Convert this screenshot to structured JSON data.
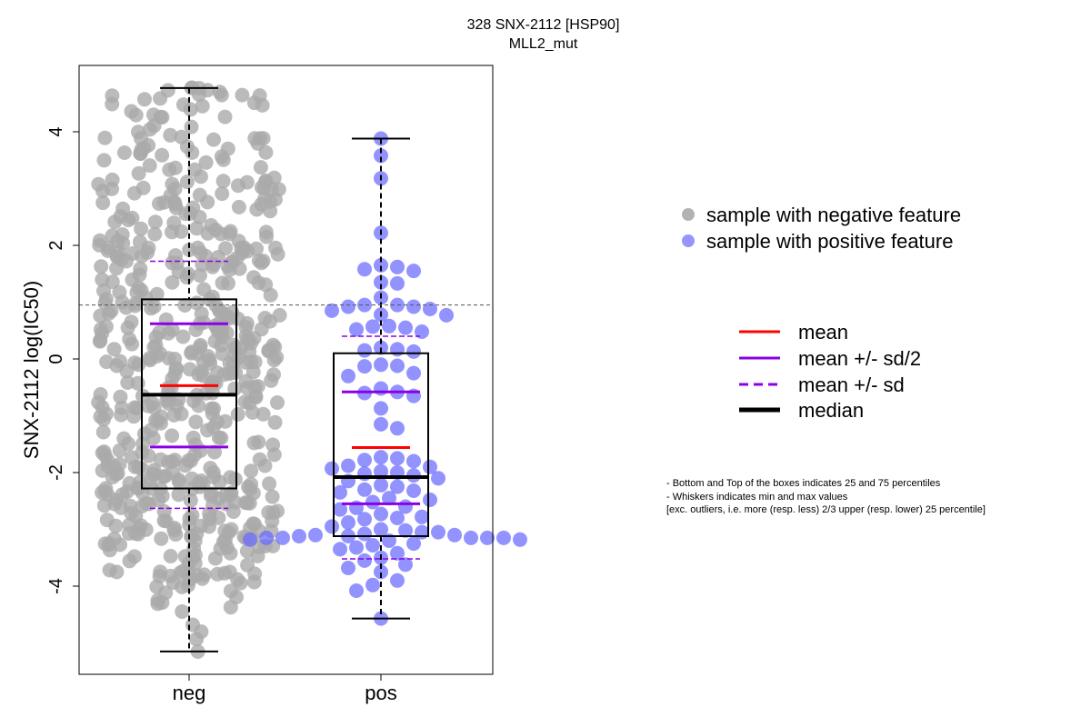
{
  "chart_data": {
    "type": "box",
    "title": "328 SNX-2112 [HSP90]",
    "subtitle": "MLL2_mut",
    "ylabel": "SNX-2112 log(IC50)",
    "xlabel": "",
    "ylim": [
      -5.5,
      5.2
    ],
    "yticks": [
      -4,
      -2,
      0,
      2,
      4
    ],
    "categories": [
      "neg",
      "pos"
    ],
    "reference_line_y": 0.95,
    "groups": [
      {
        "name": "neg",
        "color": "#aaaaaa",
        "whisker_low": -5.15,
        "q1": -2.28,
        "median": -0.63,
        "q3": 1.05,
        "whisker_high": 4.77,
        "mean": -0.47,
        "mean_minus_half_sd": -1.55,
        "mean_plus_half_sd": 0.62,
        "mean_minus_sd": -2.63,
        "mean_plus_sd": 1.72
      },
      {
        "name": "pos",
        "color": "#7777ff",
        "whisker_low": -4.57,
        "q1": -3.12,
        "median": -2.08,
        "q3": 0.1,
        "whisker_high": 3.88,
        "mean": -1.56,
        "mean_minus_half_sd": -2.55,
        "mean_plus_half_sd": -0.58,
        "mean_minus_sd": -3.52,
        "mean_plus_sd": 0.4,
        "points": [
          3.88,
          3.58,
          3.18,
          2.22,
          1.65,
          1.62,
          1.58,
          1.55,
          1.35,
          1.33,
          1.08,
          0.95,
          0.95,
          0.92,
          0.92,
          0.88,
          0.85,
          0.78,
          0.77,
          0.58,
          0.57,
          0.55,
          0.52,
          0.48,
          0.2,
          0.17,
          0.15,
          0.13,
          -0.1,
          -0.12,
          -0.13,
          -0.25,
          -0.3,
          -0.52,
          -0.58,
          -0.6,
          -0.65,
          -0.87,
          -1.15,
          -1.22,
          -1.73,
          -1.75,
          -1.78,
          -1.8,
          -1.88,
          -1.9,
          -1.93,
          -1.98,
          -2.0,
          -2.02,
          -2.05,
          -2.1,
          -2.15,
          -2.22,
          -2.25,
          -2.3,
          -2.32,
          -2.35,
          -2.45,
          -2.48,
          -2.52,
          -2.6,
          -2.62,
          -2.65,
          -2.73,
          -2.78,
          -2.8,
          -2.82,
          -2.88,
          -2.95,
          -3.0,
          -3.02,
          -3.05,
          -3.05,
          -3.08,
          -3.1,
          -3.1,
          -3.12,
          -3.12,
          -3.15,
          -3.15,
          -3.15,
          -3.15,
          -3.15,
          -3.18,
          -3.18,
          -3.2,
          -3.25,
          -3.28,
          -3.32,
          -3.35,
          -3.42,
          -3.5,
          -3.55,
          -3.62,
          -3.68,
          -3.75,
          -3.9,
          -3.98,
          -4.08,
          -4.57
        ]
      }
    ],
    "legend_points": [
      {
        "label": "sample with negative feature",
        "color": "#aaaaaa"
      },
      {
        "label": "sample with positive feature",
        "color": "#8a8aff"
      }
    ],
    "legend_lines": [
      {
        "label": "mean",
        "color": "#ff0000",
        "style": "solid"
      },
      {
        "label": "mean +/- sd/2",
        "color": "#8b00e6",
        "style": "solid"
      },
      {
        "label": "mean +/- sd",
        "color": "#8b00e6",
        "style": "dashed"
      },
      {
        "label": "median",
        "color": "#000000",
        "style": "thick"
      }
    ]
  },
  "notes": [
    "- Bottom and Top of the boxes indicates 25 and 75 percentiles",
    "- Whiskers indicates min and max values",
    "[exc. outliers, i.e. more (resp. less) 2/3 upper (resp. lower) 25 percentile]"
  ]
}
